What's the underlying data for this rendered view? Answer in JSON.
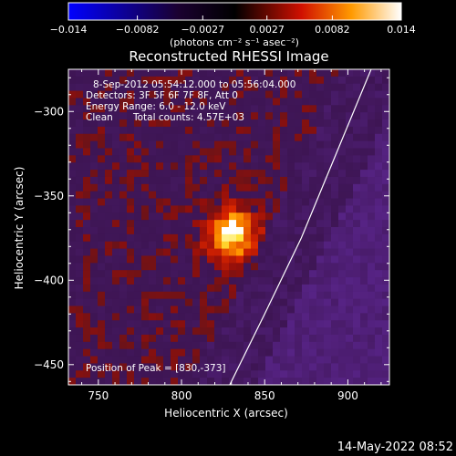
{
  "chart_data": {
    "type": "heatmap",
    "title": "Reconstructed RHESSI Image",
    "xlabel": "Heliocentric X (arcsec)",
    "ylabel": "Heliocentric Y (arcsec)",
    "xlim": [
      732,
      925
    ],
    "ylim": [
      -462,
      -275
    ],
    "x_ticks": [
      750,
      800,
      850,
      900
    ],
    "y_ticks": [
      -300,
      -350,
      -400,
      -450
    ],
    "colorbar": {
      "range": [
        -0.014,
        0.014
      ],
      "ticks": [
        -0.014,
        -0.0082,
        -0.0027,
        0.0027,
        0.0082,
        0.014
      ],
      "tick_labels": [
        "−0.014",
        "−0.0082",
        "−0.0027",
        "0.0027",
        "0.0082",
        "0.014"
      ],
      "label": "(photons cm⁻² s⁻¹ asec⁻²)",
      "colors": [
        "#0000ff",
        "#1a0030",
        "#000000",
        "#d01000",
        "#ff9a00",
        "#ffffff"
      ]
    },
    "annotations": [
      "8-Sep-2012 05:54:12.000 to 05:56:04.000",
      "Detectors: 3F 5F 6F 7F 8F, Att 0",
      "Energy Range: 6.0 - 12.0 keV",
      "Clean",
      "Total counts: 4.57E+03"
    ],
    "peak_label": "Position of Peak = [830,-373]",
    "peak": {
      "x": 830,
      "y": -373
    },
    "limb": [
      [
        829,
        -462
      ],
      [
        850,
        -420
      ],
      [
        872,
        -375
      ],
      [
        893,
        -325
      ],
      [
        914,
        -275
      ]
    ],
    "grid": false
  },
  "footer": {
    "timestamp": "14-May-2022 08:52"
  }
}
